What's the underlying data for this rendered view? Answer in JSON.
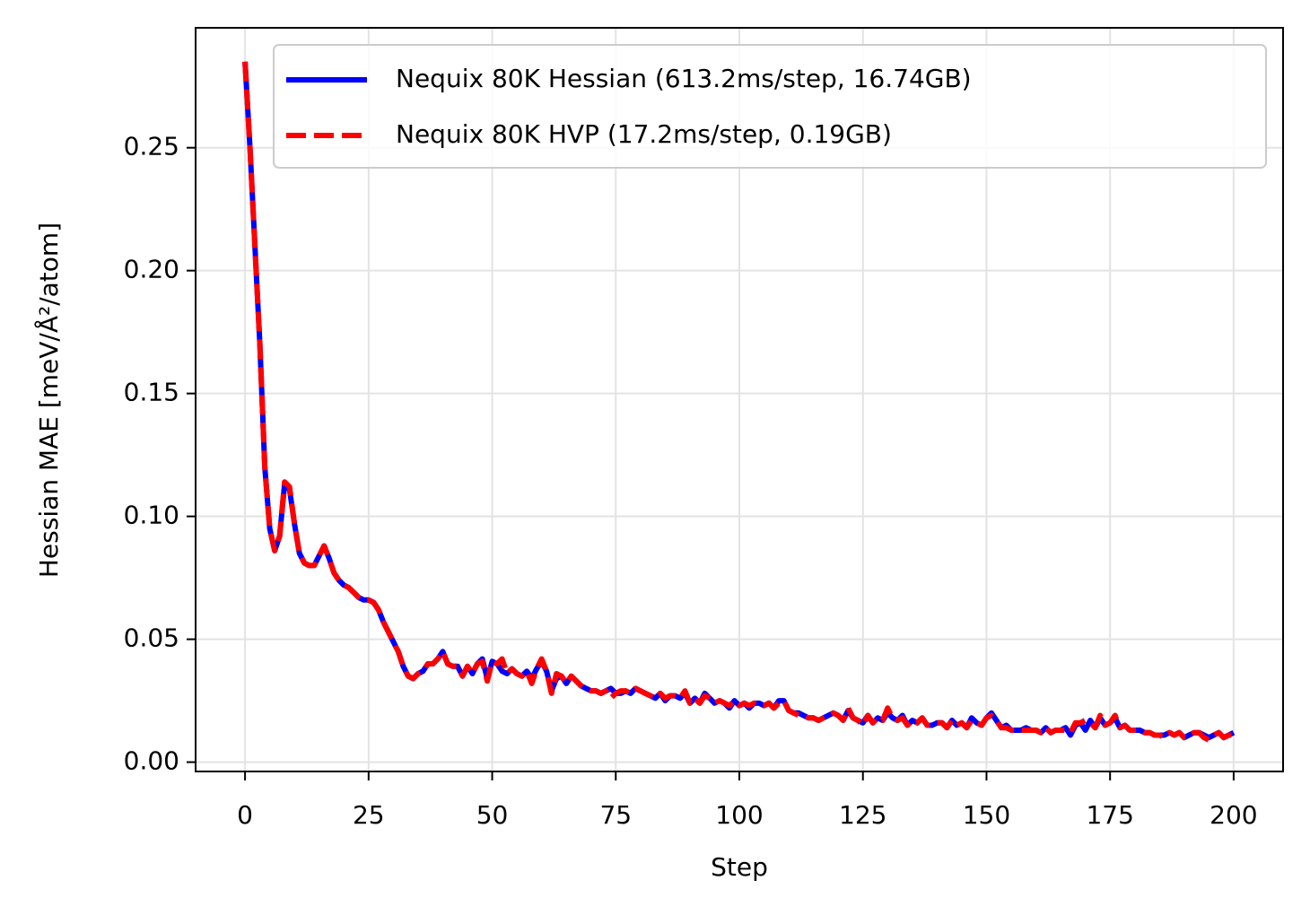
{
  "chart_data": {
    "type": "line",
    "x_label": "Step",
    "y_label": "Hessian MAE [meV/Å²/atom]",
    "x": [
      0,
      1,
      2,
      3,
      4,
      5,
      6,
      7,
      8,
      9,
      10,
      11,
      12,
      13,
      14,
      15,
      16,
      17,
      18,
      19,
      20,
      21,
      22,
      23,
      24,
      25,
      26,
      27,
      28,
      29,
      30,
      31,
      32,
      33,
      34,
      35,
      36,
      37,
      38,
      39,
      40,
      41,
      42,
      43,
      44,
      45,
      46,
      47,
      48,
      49,
      50,
      51,
      52,
      53,
      54,
      55,
      56,
      57,
      58,
      59,
      60,
      61,
      62,
      63,
      64,
      65,
      66,
      67,
      68,
      69,
      70,
      71,
      72,
      73,
      74,
      75,
      76,
      77,
      78,
      79,
      80,
      81,
      82,
      83,
      84,
      85,
      86,
      87,
      88,
      89,
      90,
      91,
      92,
      93,
      94,
      95,
      96,
      97,
      98,
      99,
      100,
      101,
      102,
      103,
      104,
      105,
      106,
      107,
      108,
      109,
      110,
      111,
      112,
      113,
      114,
      115,
      116,
      117,
      118,
      119,
      120,
      121,
      122,
      123,
      124,
      125,
      126,
      127,
      128,
      129,
      130,
      131,
      132,
      133,
      134,
      135,
      136,
      137,
      138,
      139,
      140,
      141,
      142,
      143,
      144,
      145,
      146,
      147,
      148,
      149,
      150,
      151,
      152,
      153,
      154,
      155,
      156,
      157,
      158,
      159,
      160,
      161,
      162,
      163,
      164,
      165,
      166,
      167,
      168,
      169,
      170,
      171,
      172,
      173,
      174,
      175,
      176,
      177,
      178,
      179,
      180,
      181,
      182,
      183,
      184,
      185,
      186,
      187,
      188,
      189,
      190,
      191,
      192,
      193,
      194,
      195,
      196,
      197,
      198,
      199,
      200
    ],
    "series": [
      {
        "name": "Nequix 80K Hessian (613.2ms/step, 16.74GB)",
        "color": "#0000ff",
        "dash": false,
        "values": [
          0.285,
          0.25,
          0.21,
          0.17,
          0.12,
          0.095,
          0.086,
          0.092,
          0.113,
          0.111,
          0.097,
          0.085,
          0.081,
          0.08,
          0.08,
          0.084,
          0.088,
          0.083,
          0.077,
          0.074,
          0.072,
          0.071,
          0.069,
          0.067,
          0.066,
          0.066,
          0.065,
          0.062,
          0.057,
          0.053,
          0.049,
          0.045,
          0.039,
          0.035,
          0.034,
          0.036,
          0.037,
          0.04,
          0.04,
          0.042,
          0.045,
          0.04,
          0.039,
          0.039,
          0.035,
          0.039,
          0.036,
          0.04,
          0.042,
          0.034,
          0.041,
          0.04,
          0.037,
          0.036,
          0.038,
          0.036,
          0.035,
          0.037,
          0.034,
          0.038,
          0.041,
          0.037,
          0.029,
          0.034,
          0.035,
          0.032,
          0.035,
          0.033,
          0.031,
          0.03,
          0.029,
          0.029,
          0.028,
          0.029,
          0.03,
          0.028,
          0.028,
          0.029,
          0.028,
          0.03,
          0.029,
          0.028,
          0.027,
          0.026,
          0.028,
          0.025,
          0.027,
          0.027,
          0.026,
          0.028,
          0.024,
          0.026,
          0.024,
          0.028,
          0.026,
          0.024,
          0.025,
          0.024,
          0.022,
          0.025,
          0.023,
          0.024,
          0.022,
          0.024,
          0.024,
          0.023,
          0.024,
          0.022,
          0.025,
          0.025,
          0.021,
          0.02,
          0.02,
          0.019,
          0.018,
          0.018,
          0.017,
          0.018,
          0.019,
          0.02,
          0.019,
          0.017,
          0.021,
          0.018,
          0.017,
          0.016,
          0.019,
          0.016,
          0.018,
          0.017,
          0.02,
          0.018,
          0.017,
          0.019,
          0.015,
          0.017,
          0.016,
          0.018,
          0.015,
          0.015,
          0.016,
          0.016,
          0.014,
          0.017,
          0.015,
          0.016,
          0.014,
          0.018,
          0.016,
          0.015,
          0.018,
          0.02,
          0.017,
          0.014,
          0.015,
          0.013,
          0.013,
          0.013,
          0.014,
          0.013,
          0.013,
          0.012,
          0.014,
          0.012,
          0.013,
          0.013,
          0.014,
          0.011,
          0.015,
          0.016,
          0.013,
          0.017,
          0.014,
          0.018,
          0.015,
          0.016,
          0.018,
          0.014,
          0.015,
          0.013,
          0.013,
          0.013,
          0.012,
          0.012,
          0.011,
          0.011,
          0.011,
          0.012,
          0.011,
          0.012,
          0.01,
          0.011,
          0.012,
          0.012,
          0.011,
          0.01,
          0.011,
          0.012,
          0.01,
          0.011,
          0.012
        ]
      },
      {
        "name": "Nequix 80K HVP (17.2ms/step, 0.19GB)",
        "color": "#ff0000",
        "dash": true,
        "values": [
          0.285,
          0.25,
          0.21,
          0.17,
          0.12,
          0.095,
          0.086,
          0.092,
          0.114,
          0.112,
          0.097,
          0.085,
          0.081,
          0.08,
          0.08,
          0.084,
          0.088,
          0.083,
          0.077,
          0.074,
          0.072,
          0.071,
          0.069,
          0.067,
          0.066,
          0.066,
          0.065,
          0.062,
          0.057,
          0.053,
          0.049,
          0.045,
          0.039,
          0.035,
          0.034,
          0.036,
          0.037,
          0.04,
          0.04,
          0.042,
          0.045,
          0.04,
          0.039,
          0.039,
          0.035,
          0.039,
          0.036,
          0.04,
          0.041,
          0.033,
          0.041,
          0.04,
          0.042,
          0.036,
          0.038,
          0.036,
          0.035,
          0.037,
          0.032,
          0.038,
          0.042,
          0.037,
          0.028,
          0.036,
          0.035,
          0.032,
          0.035,
          0.033,
          0.031,
          0.03,
          0.029,
          0.029,
          0.028,
          0.029,
          0.026,
          0.028,
          0.029,
          0.029,
          0.028,
          0.03,
          0.029,
          0.028,
          0.027,
          0.026,
          0.028,
          0.026,
          0.027,
          0.027,
          0.026,
          0.029,
          0.024,
          0.026,
          0.024,
          0.027,
          0.026,
          0.024,
          0.025,
          0.024,
          0.023,
          0.025,
          0.023,
          0.024,
          0.023,
          0.024,
          0.023,
          0.023,
          0.024,
          0.022,
          0.024,
          0.025,
          0.021,
          0.02,
          0.019,
          0.019,
          0.018,
          0.018,
          0.017,
          0.018,
          0.019,
          0.02,
          0.019,
          0.017,
          0.022,
          0.018,
          0.017,
          0.015,
          0.019,
          0.016,
          0.018,
          0.017,
          0.022,
          0.018,
          0.017,
          0.018,
          0.015,
          0.017,
          0.016,
          0.018,
          0.015,
          0.015,
          0.016,
          0.016,
          0.014,
          0.017,
          0.015,
          0.016,
          0.014,
          0.017,
          0.016,
          0.015,
          0.018,
          0.019,
          0.017,
          0.014,
          0.014,
          0.013,
          0.013,
          0.013,
          0.013,
          0.013,
          0.013,
          0.012,
          0.014,
          0.012,
          0.013,
          0.013,
          0.013,
          0.012,
          0.016,
          0.016,
          0.017,
          0.016,
          0.014,
          0.019,
          0.015,
          0.016,
          0.019,
          0.014,
          0.015,
          0.013,
          0.013,
          0.013,
          0.012,
          0.012,
          0.011,
          0.011,
          0.01,
          0.012,
          0.011,
          0.012,
          0.01,
          0.011,
          0.012,
          0.012,
          0.01,
          0.009,
          0.011,
          0.012,
          0.01,
          0.011,
          0.011
        ]
      }
    ],
    "xlim": [
      -10,
      210
    ],
    "ylim": [
      -0.0038,
      0.2988
    ],
    "xticks": [
      0,
      25,
      50,
      75,
      100,
      125,
      150,
      175,
      200
    ],
    "yticks": [
      {
        "value": 0,
        "label": "0.00"
      },
      {
        "value": 0.05,
        "label": "0.05"
      },
      {
        "value": 0.1,
        "label": "0.10"
      },
      {
        "value": 0.15,
        "label": "0.15"
      },
      {
        "value": 0.2,
        "label": "0.20"
      },
      {
        "value": 0.25,
        "label": "0.25"
      }
    ],
    "grid": true,
    "legend": "upper right"
  }
}
